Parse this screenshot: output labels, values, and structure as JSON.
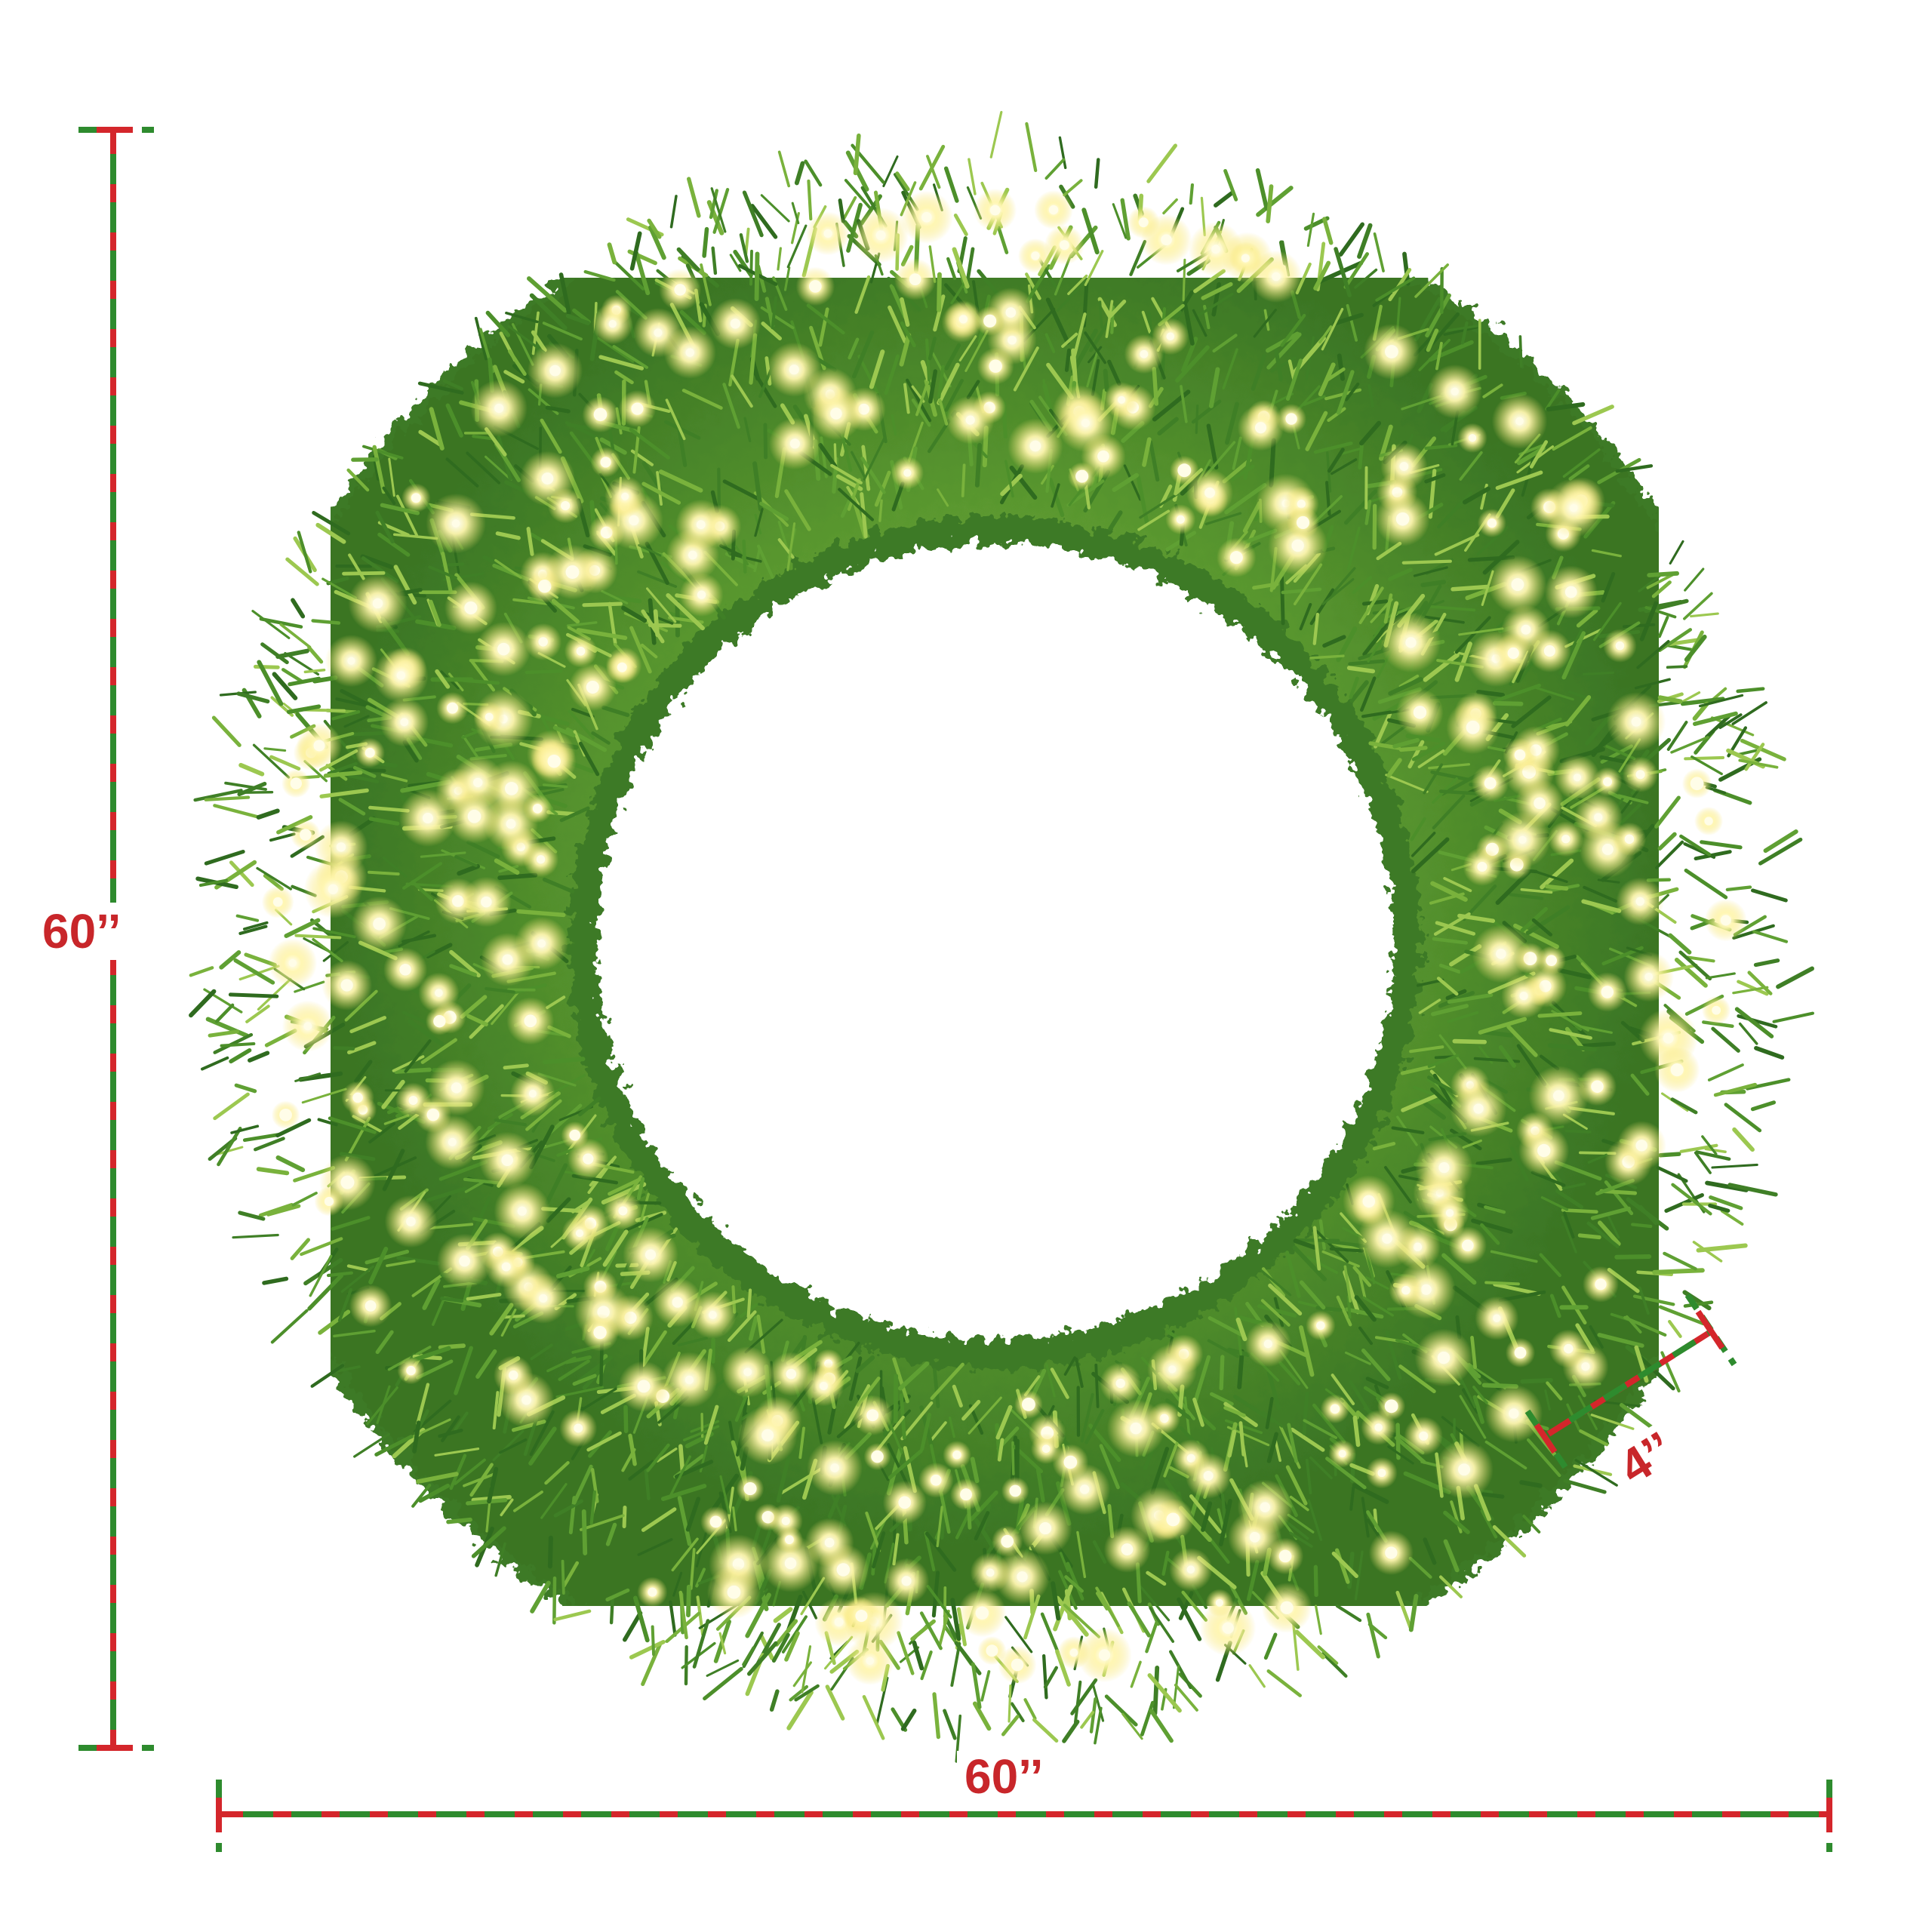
{
  "dimensions": {
    "height_label": "60’’",
    "width_label": "60’’",
    "depth_label": "4’’"
  },
  "colors": {
    "dash_red": "#d4262b",
    "dash_green": "#2e8b2e",
    "label_red": "#c8262a",
    "pine_dark": "#2f6b1f",
    "pine_mid": "#4c8f2a",
    "pine_light": "#8fbf45",
    "light_glow": "#fff6b0"
  },
  "icons": {
    "wreath": "wreath-illustration",
    "height_arrow": "dimension-line-vertical",
    "width_arrow": "dimension-line-horizontal",
    "depth_arrow": "dimension-line-diagonal"
  }
}
